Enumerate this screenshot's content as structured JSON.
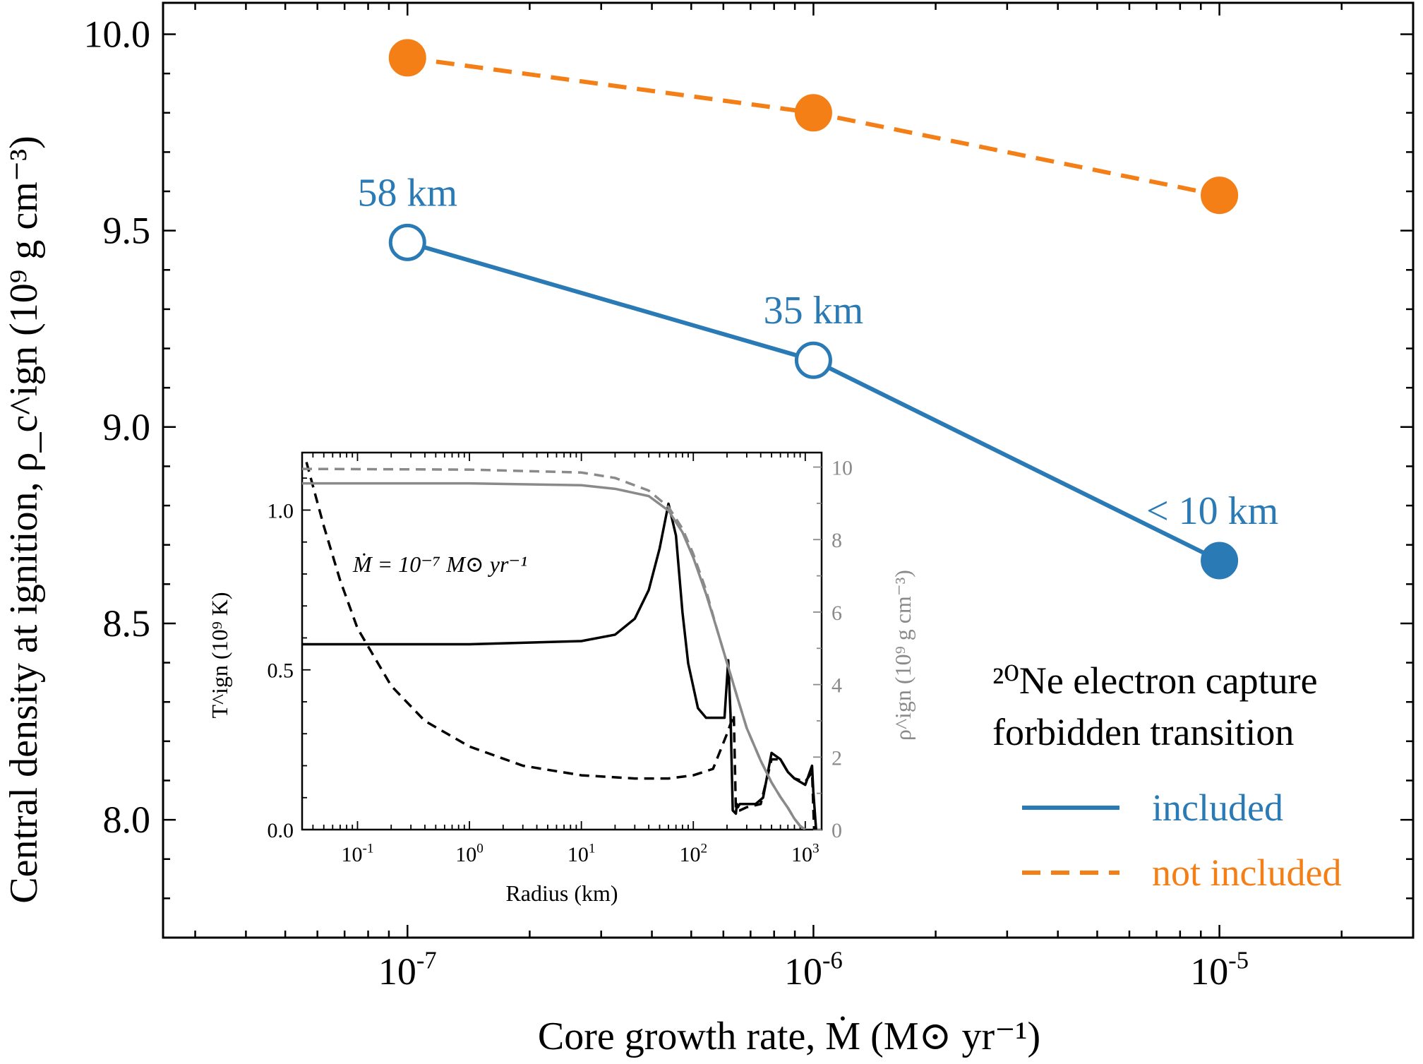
{
  "chart_data": [
    {
      "type": "line",
      "x_scale": "log",
      "xlim": [
        2.5e-08,
        3e-05
      ],
      "ylim": [
        7.7,
        10.08
      ],
      "xlabel": "Core growth rate, Ṁ (M⊙ yr⁻¹)",
      "ylabel": "Central density at ignition, ρ_c^ign (10⁹ g cm⁻³)",
      "x_ticks": [
        {
          "value": 1e-07,
          "label_base": "10",
          "label_exp": "-7"
        },
        {
          "value": 1e-06,
          "label_base": "10",
          "label_exp": "-6"
        },
        {
          "value": 1e-05,
          "label_base": "10",
          "label_exp": "-5"
        }
      ],
      "y_ticks": [
        {
          "value": 8.0,
          "label": "8.0"
        },
        {
          "value": 8.5,
          "label": "8.5"
        },
        {
          "value": 9.0,
          "label": "9.0"
        },
        {
          "value": 9.5,
          "label": "9.5"
        },
        {
          "value": 10.0,
          "label": "10.0"
        }
      ],
      "x": [
        1e-07,
        1e-06,
        1e-05
      ],
      "series": [
        {
          "name": "included",
          "color": "#2a7ab5",
          "line_style": "solid",
          "values": [
            9.47,
            9.17,
            8.66
          ],
          "markers_filled": [
            false,
            false,
            true
          ],
          "point_labels": [
            "58 km",
            "35 km",
            "< 10 km"
          ]
        },
        {
          "name": "not included",
          "color": "#f47f17",
          "line_style": "dashed",
          "values": [
            9.94,
            9.8,
            9.59
          ],
          "markers_filled": [
            true,
            true,
            true
          ],
          "point_labels": [
            "",
            "",
            ""
          ]
        }
      ],
      "legend": {
        "placement": "lower-right",
        "title_line1": "²⁰Ne electron capture",
        "title_line2": "forbidden transition",
        "entries": [
          "included",
          "not included"
        ]
      }
    },
    {
      "type": "line",
      "inset": true,
      "x_scale": "log",
      "xlim": [
        0.032,
        1400
      ],
      "ylim_left": [
        0,
        1.18
      ],
      "ylim_right": [
        0,
        10.4
      ],
      "xlabel": "Radius (km)",
      "ylabel_left": "T^ign (10⁹ K)",
      "ylabel_right": "ρ^ign (10⁹ g cm⁻³)",
      "annotation": "Ṁ = 10⁻⁷ M⊙ yr⁻¹",
      "x_ticks": [
        {
          "value": 0.1,
          "label_base": "10",
          "label_exp": "-1"
        },
        {
          "value": 1,
          "label_base": "10",
          "label_exp": "0"
        },
        {
          "value": 10,
          "label_base": "10",
          "label_exp": "1"
        },
        {
          "value": 100,
          "label_base": "10",
          "label_exp": "2"
        },
        {
          "value": 1000,
          "label_base": "10",
          "label_exp": "3"
        }
      ],
      "y_ticks_left": [
        "0.0",
        "0.5",
        "1.0"
      ],
      "y_ticks_right": [
        "0",
        "2",
        "4",
        "6",
        "8",
        "10"
      ],
      "series": [
        {
          "name": "T^ign (Ne capture included)",
          "axis": "left",
          "color": "#000000",
          "line_style": "solid",
          "x": [
            0.032,
            1,
            10,
            20,
            30,
            40,
            50,
            60,
            70,
            80,
            90,
            110,
            130,
            160,
            190,
            205,
            215,
            225,
            240,
            245,
            250,
            260,
            300,
            360,
            420,
            500,
            600,
            700,
            800,
            1000,
            1150,
            1180,
            1250
          ],
          "y": [
            0.58,
            0.58,
            0.59,
            0.61,
            0.66,
            0.75,
            0.88,
            1.02,
            0.92,
            0.68,
            0.52,
            0.38,
            0.35,
            0.35,
            0.35,
            0.53,
            0.36,
            0.06,
            0.05,
            0.08,
            0.07,
            0.08,
            0.08,
            0.08,
            0.1,
            0.24,
            0.22,
            0.18,
            0.16,
            0.14,
            0.2,
            0.12,
            0.0
          ]
        },
        {
          "name": "T^ign (Ne capture not included)",
          "axis": "left",
          "color": "#000000",
          "line_style": "dashed",
          "x": [
            0.035,
            0.05,
            0.07,
            0.1,
            0.2,
            0.4,
            1,
            3,
            10,
            30,
            60,
            100,
            150,
            200,
            230,
            240,
            260,
            300,
            400,
            500,
            600,
            700,
            800,
            1000,
            1150,
            1200
          ],
          "y": [
            1.15,
            0.95,
            0.78,
            0.63,
            0.45,
            0.34,
            0.26,
            0.2,
            0.17,
            0.16,
            0.16,
            0.17,
            0.19,
            0.3,
            0.36,
            0.06,
            0.06,
            0.07,
            0.08,
            0.22,
            0.22,
            0.18,
            0.16,
            0.15,
            0.18,
            0.0
          ]
        },
        {
          "name": "ρ^ign (Ne capture included)",
          "axis": "right",
          "color": "#8a8a8a",
          "line_style": "solid",
          "x": [
            0.032,
            1,
            10,
            20,
            40,
            60,
            80,
            100,
            130,
            160,
            200,
            250,
            300,
            400,
            500,
            600,
            700,
            800,
            900,
            1000
          ],
          "y": [
            9.55,
            9.55,
            9.5,
            9.4,
            9.2,
            8.8,
            8.2,
            7.5,
            6.5,
            5.6,
            4.6,
            3.6,
            2.8,
            1.9,
            1.3,
            0.9,
            0.6,
            0.3,
            0.1,
            0.0
          ]
        },
        {
          "name": "ρ^ign (Ne capture not included)",
          "axis": "right",
          "color": "#8a8a8a",
          "line_style": "dashed",
          "x": [
            0.032,
            1,
            10,
            20,
            40,
            60,
            80,
            100,
            130,
            160,
            200,
            250,
            300,
            400,
            500,
            600,
            700,
            800,
            900,
            1000
          ],
          "y": [
            9.95,
            9.93,
            9.85,
            9.7,
            9.35,
            8.9,
            8.3,
            7.6,
            6.6,
            5.6,
            4.6,
            3.6,
            2.8,
            1.9,
            1.3,
            0.9,
            0.6,
            0.3,
            0.1,
            0.0
          ]
        }
      ]
    }
  ]
}
